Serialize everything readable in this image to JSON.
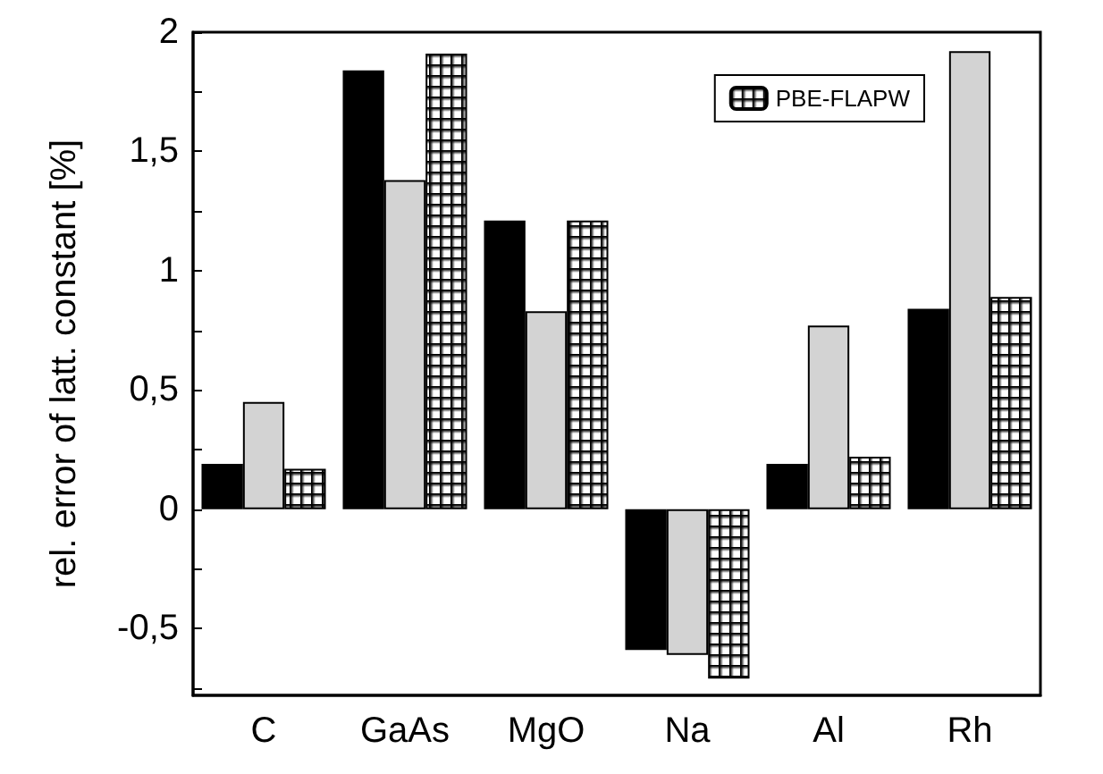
{
  "chart_data": {
    "type": "bar",
    "ylabel": "rel. error of latt. constant [%]",
    "categories": [
      "C",
      "GaAs",
      "MgO",
      "Na",
      "Al",
      "Rh"
    ],
    "series": [
      {
        "color": "#000000",
        "values": [
          0.19,
          1.84,
          1.21,
          -0.59,
          0.19,
          0.84
        ]
      },
      {
        "color": "#d3d3d3",
        "values": [
          0.45,
          1.38,
          0.83,
          -0.61,
          0.77,
          1.92
        ]
      },
      {
        "name": "PBE-FLAPW",
        "color": "#000000",
        "values": [
          0.17,
          1.91,
          1.21,
          -0.71,
          0.22,
          0.89
        ]
      }
    ],
    "ylim": [
      -0.78,
      2
    ],
    "yticks": [
      {
        "value": -0.75,
        "label": null
      },
      {
        "value": -0.5,
        "label": "-0,5"
      },
      {
        "value": -0.25,
        "label": null
      },
      0,
      {
        "value": 0.25,
        "label": null
      },
      {
        "value": 0.5,
        "label": "0,5"
      },
      {
        "value": 0.75,
        "label": null
      },
      1,
      {
        "value": 1.25,
        "label": null
      },
      {
        "value": 1.5,
        "label": "1,5"
      },
      {
        "value": 1.75,
        "label": null
      },
      2
    ],
    "grid": false,
    "legend": "top right"
  }
}
